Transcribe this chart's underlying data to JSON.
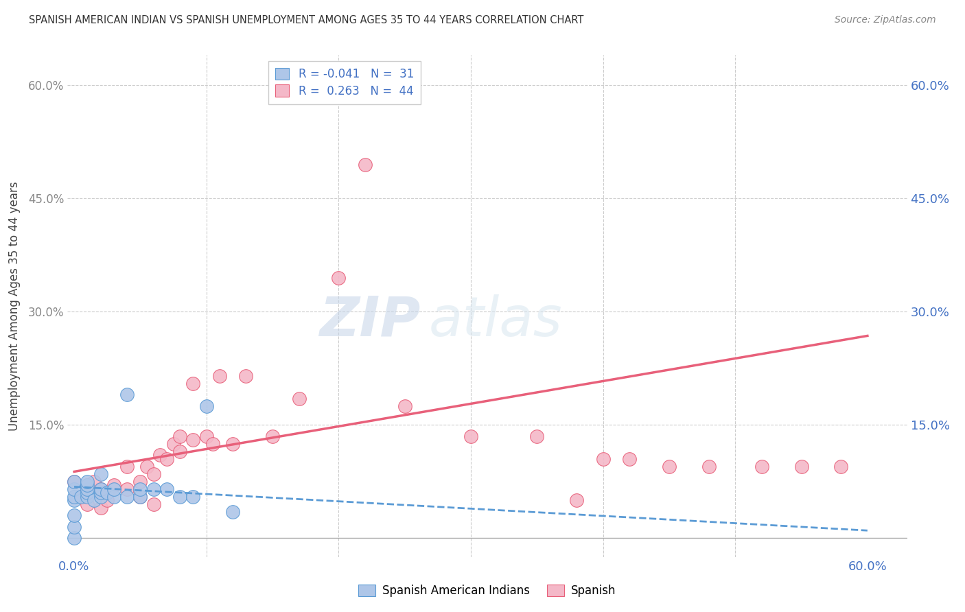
{
  "title": "SPANISH AMERICAN INDIAN VS SPANISH UNEMPLOYMENT AMONG AGES 35 TO 44 YEARS CORRELATION CHART",
  "source": "Source: ZipAtlas.com",
  "ylabel": "Unemployment Among Ages 35 to 44 years",
  "x_ticks": [
    0.0,
    0.1,
    0.2,
    0.3,
    0.4,
    0.5,
    0.6
  ],
  "x_tick_labels": [
    "0.0%",
    "",
    "",
    "",
    "",
    "",
    "60.0%"
  ],
  "y_ticks": [
    0.0,
    0.15,
    0.3,
    0.45,
    0.6
  ],
  "y_tick_labels": [
    "",
    "15.0%",
    "30.0%",
    "45.0%",
    "60.0%"
  ],
  "xlim": [
    -0.005,
    0.63
  ],
  "ylim": [
    -0.025,
    0.64
  ],
  "legend_R1": "-0.041",
  "legend_N1": "31",
  "legend_R2": "0.263",
  "legend_N2": "44",
  "legend_label1": "Spanish American Indians",
  "legend_label2": "Spanish",
  "color_blue": "#aec6e8",
  "color_blue_dark": "#5b9bd5",
  "color_pink": "#f4b8c8",
  "color_pink_dark": "#e8607a",
  "watermark_zip": "ZIP",
  "watermark_atlas": "atlas",
  "blue_scatter_x": [
    0.0,
    0.0,
    0.0,
    0.0,
    0.0,
    0.0,
    0.0,
    0.005,
    0.01,
    0.01,
    0.01,
    0.01,
    0.01,
    0.015,
    0.02,
    0.02,
    0.02,
    0.02,
    0.025,
    0.03,
    0.03,
    0.04,
    0.04,
    0.05,
    0.05,
    0.06,
    0.07,
    0.08,
    0.09,
    0.1,
    0.12
  ],
  "blue_scatter_y": [
    0.0,
    0.015,
    0.03,
    0.05,
    0.055,
    0.065,
    0.075,
    0.055,
    0.055,
    0.06,
    0.065,
    0.07,
    0.075,
    0.05,
    0.055,
    0.06,
    0.065,
    0.085,
    0.06,
    0.055,
    0.065,
    0.055,
    0.19,
    0.055,
    0.065,
    0.065,
    0.065,
    0.055,
    0.055,
    0.175,
    0.035
  ],
  "pink_scatter_x": [
    0.0,
    0.005,
    0.01,
    0.01,
    0.015,
    0.02,
    0.02,
    0.02,
    0.025,
    0.03,
    0.04,
    0.04,
    0.05,
    0.05,
    0.055,
    0.06,
    0.06,
    0.065,
    0.07,
    0.075,
    0.08,
    0.08,
    0.09,
    0.09,
    0.1,
    0.105,
    0.11,
    0.12,
    0.13,
    0.15,
    0.17,
    0.2,
    0.22,
    0.25,
    0.3,
    0.35,
    0.38,
    0.4,
    0.42,
    0.45,
    0.48,
    0.52,
    0.55,
    0.58
  ],
  "pink_scatter_y": [
    0.075,
    0.055,
    0.045,
    0.07,
    0.075,
    0.04,
    0.055,
    0.065,
    0.05,
    0.07,
    0.065,
    0.095,
    0.055,
    0.075,
    0.095,
    0.045,
    0.085,
    0.11,
    0.105,
    0.125,
    0.115,
    0.135,
    0.13,
    0.205,
    0.135,
    0.125,
    0.215,
    0.125,
    0.215,
    0.135,
    0.185,
    0.345,
    0.495,
    0.175,
    0.135,
    0.135,
    0.05,
    0.105,
    0.105,
    0.095,
    0.095,
    0.095,
    0.095,
    0.095
  ],
  "blue_trend_x": [
    0.0,
    0.6
  ],
  "blue_trend_y": [
    0.068,
    0.01
  ],
  "pink_trend_x": [
    0.0,
    0.6
  ],
  "pink_trend_y": [
    0.088,
    0.268
  ]
}
